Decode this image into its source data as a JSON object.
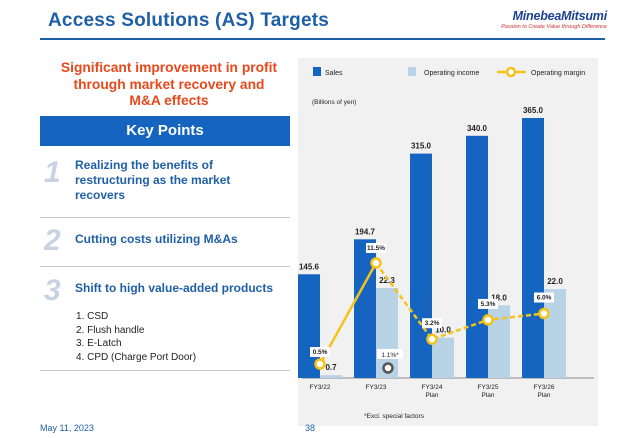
{
  "header": {
    "title": "Access Solutions (AS) Targets",
    "logo_name": "MinebeaMitsumi",
    "logo_tagline": "Passion to Create Value through Difference",
    "accent_color": "#1f5fa8"
  },
  "headline": {
    "line1": "Significant improvement in profit",
    "line2": "through market recovery and",
    "line3": "M&A effects",
    "color": "#e8481c"
  },
  "key_points": {
    "title": "Key Points",
    "items": [
      {
        "num": "1",
        "lines": [
          "Realizing the benefits of",
          "restructuring as the market",
          "recovers"
        ]
      },
      {
        "num": "2",
        "lines": [
          "Cutting costs utilizing M&As"
        ]
      },
      {
        "num": "3",
        "lines": [
          "Shift to high value-added products"
        ]
      }
    ],
    "sublist": [
      "1. CSD",
      "2. Flush handle",
      "3. E-Latch",
      "4. CPD (Charge Port Door)"
    ]
  },
  "chart_data": {
    "type": "bar",
    "ylabel": "(Billions of yen)",
    "legend": [
      "Sales",
      "Operating income",
      "Operating margin"
    ],
    "legend_position": "top",
    "categories": [
      "FY3/22",
      "FY3/23",
      "FY3/24\nPlan",
      "FY3/25\nPlan",
      "FY3/26\nPlan"
    ],
    "series": [
      {
        "name": "Sales",
        "values": [
          145.6,
          194.7,
          315.0,
          340.0,
          365.0
        ],
        "labels": [
          "145.6",
          "194.7",
          "315.0",
          "340.0",
          "365.0"
        ],
        "color": "#1565c0"
      },
      {
        "name": "Operating income",
        "values": [
          0.7,
          22.3,
          10.0,
          18.0,
          22.0
        ],
        "labels": [
          "0.7",
          "22.3",
          "10.0",
          "18.0",
          "22.0"
        ],
        "color": "#b8d2e6"
      },
      {
        "name": "Operating margin",
        "values": [
          0.5,
          11.5,
          3.2,
          5.3,
          6.0
        ],
        "labels": [
          "0.5%",
          "11.5%",
          "3.2%",
          "5.3%",
          "6.0%"
        ],
        "color": "#f5c21b"
      }
    ],
    "extra_labels": {
      "excl_label": "1.1%*"
    },
    "footnote": "*Excl. special factors",
    "grid": false
  },
  "footer": {
    "date": "May 11, 2023",
    "page": "38"
  }
}
